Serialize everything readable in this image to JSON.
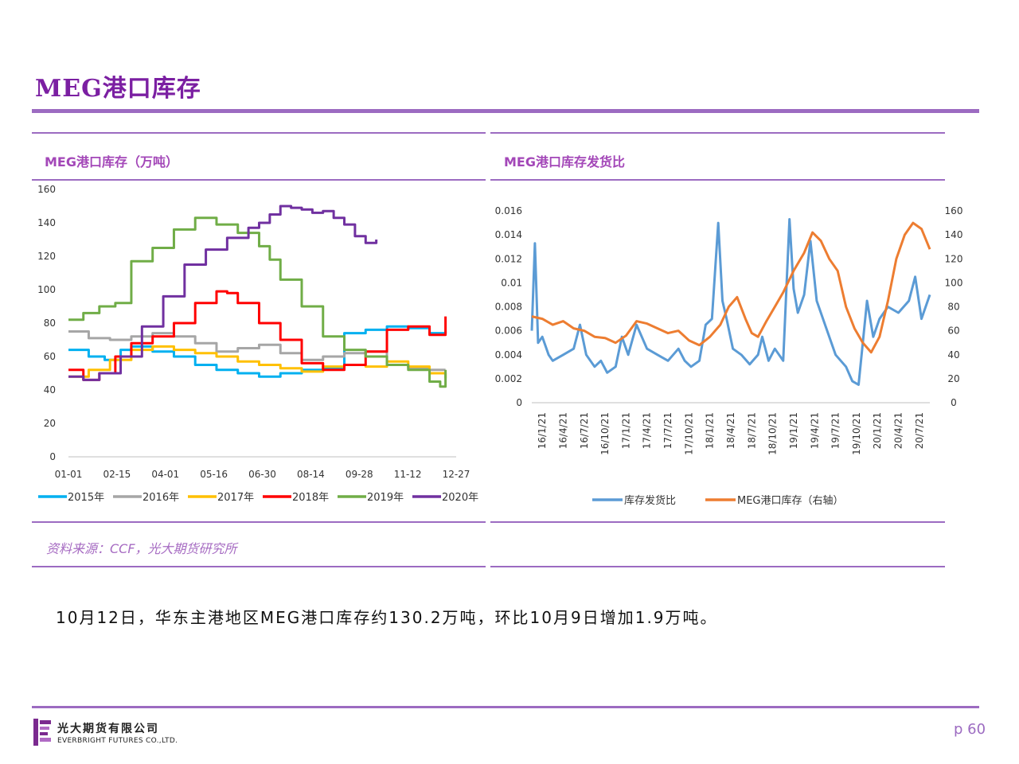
{
  "page": {
    "title": "MEG港口库存",
    "body_text": "10月12日，华东主港地区MEG港口库存约130.2万吨，环比10月9日增加1.9万吨。",
    "source": "资料来源：CCF，光大期货研究所",
    "page_number": "p 60",
    "logo_cn": "光大期货有限公司",
    "logo_en": "EVERBRIGHT FUTURES CO.,LTD.",
    "accent_color": "#7B1FA2",
    "rule_color": "#9C6BC1"
  },
  "chart_data": [
    {
      "type": "line",
      "title": "MEG港口库存（万吨）",
      "ylim": [
        0,
        160
      ],
      "yticks": [
        "0",
        "20",
        "40",
        "60",
        "80",
        "100",
        "120",
        "140",
        "160"
      ],
      "xticks": [
        "01-01",
        "02-15",
        "04-01",
        "05-16",
        "06-30",
        "08-14",
        "09-28",
        "11-12",
        "12-27"
      ],
      "x_range": [
        1,
        365
      ],
      "legend_position": "bottom",
      "series": [
        {
          "name": "2015年",
          "color": "#00B0F0",
          "x": [
            1,
            20,
            35,
            50,
            60,
            80,
            100,
            120,
            140,
            160,
            180,
            200,
            220,
            240,
            260,
            280,
            300,
            320,
            340,
            355
          ],
          "values": [
            64,
            60,
            58,
            64,
            66,
            63,
            60,
            55,
            52,
            50,
            48,
            50,
            52,
            53,
            74,
            76,
            78,
            77,
            74,
            75
          ]
        },
        {
          "name": "2016年",
          "color": "#A6A6A6",
          "x": [
            1,
            20,
            40,
            60,
            80,
            100,
            120,
            140,
            160,
            180,
            200,
            220,
            240,
            260,
            280,
            300,
            320,
            340,
            355
          ],
          "values": [
            75,
            71,
            70,
            72,
            74,
            72,
            68,
            63,
            65,
            67,
            62,
            58,
            60,
            62,
            63,
            55,
            53,
            52,
            52
          ]
        },
        {
          "name": "2017年",
          "color": "#FFC000",
          "x": [
            1,
            20,
            40,
            60,
            80,
            100,
            120,
            140,
            160,
            180,
            200,
            220,
            240,
            260,
            280,
            300,
            320,
            340,
            355
          ],
          "values": [
            48,
            52,
            58,
            64,
            66,
            64,
            62,
            60,
            57,
            55,
            53,
            51,
            54,
            55,
            54,
            57,
            54,
            50,
            47
          ]
        },
        {
          "name": "2018年",
          "color": "#FF0000",
          "x": [
            1,
            15,
            30,
            45,
            60,
            80,
            100,
            120,
            140,
            150,
            160,
            180,
            200,
            220,
            240,
            260,
            280,
            300,
            320,
            340,
            355
          ],
          "values": [
            52,
            46,
            50,
            60,
            68,
            72,
            80,
            92,
            99,
            98,
            92,
            80,
            70,
            56,
            52,
            55,
            63,
            76,
            78,
            73,
            84
          ]
        },
        {
          "name": "2019年",
          "color": "#70AD47",
          "x": [
            1,
            15,
            30,
            45,
            60,
            80,
            100,
            120,
            140,
            160,
            180,
            190,
            200,
            220,
            240,
            260,
            280,
            300,
            320,
            340,
            350,
            355
          ],
          "values": [
            82,
            86,
            90,
            92,
            117,
            125,
            136,
            143,
            139,
            134,
            126,
            118,
            106,
            90,
            72,
            64,
            60,
            55,
            52,
            45,
            42,
            52
          ]
        },
        {
          "name": "2020年",
          "color": "#7030A0",
          "x": [
            1,
            15,
            30,
            50,
            70,
            90,
            110,
            130,
            150,
            170,
            180,
            190,
            200,
            210,
            220,
            230,
            240,
            250,
            260,
            270,
            280,
            290
          ],
          "values": [
            48,
            46,
            50,
            60,
            78,
            96,
            115,
            124,
            131,
            137,
            140,
            145,
            150,
            149,
            148,
            146,
            147,
            143,
            139,
            132,
            128,
            130
          ]
        }
      ]
    },
    {
      "type": "line",
      "title": "MEG港口库存发货比",
      "ylim_left": [
        0,
        0.016
      ],
      "ylim_right": [
        0,
        160
      ],
      "yticks_left": [
        "0",
        "0.002",
        "0.004",
        "0.006",
        "0.008",
        "0.01",
        "0.012",
        "0.014",
        "0.016"
      ],
      "yticks_right": [
        "0",
        "20",
        "40",
        "60",
        "80",
        "100",
        "120",
        "140",
        "160"
      ],
      "xticks": [
        "16/1/21",
        "16/4/21",
        "16/7/21",
        "16/10/21",
        "17/1/21",
        "17/4/21",
        "17/7/21",
        "17/10/21",
        "18/1/21",
        "18/4/21",
        "18/7/21",
        "18/10/21",
        "19/1/21",
        "19/4/21",
        "19/7/21",
        "19/10/21",
        "20/1/21",
        "20/4/21",
        "20/7/21"
      ],
      "x_range": [
        0,
        19
      ],
      "legend_position": "bottom",
      "series": [
        {
          "name": "库存发货比",
          "color": "#5B9BD5",
          "axis": "left",
          "x": [
            0,
            0.15,
            0.3,
            0.5,
            0.8,
            1,
            1.5,
            2,
            2.3,
            2.6,
            3,
            3.3,
            3.6,
            4,
            4.3,
            4.6,
            5,
            5.5,
            6,
            6.5,
            7,
            7.3,
            7.6,
            8,
            8.3,
            8.6,
            8.9,
            9.1,
            9.3,
            9.6,
            10,
            10.4,
            10.8,
            11,
            11.3,
            11.6,
            12,
            12.3,
            12.5,
            12.7,
            13,
            13.3,
            13.6,
            14,
            14.5,
            15,
            15.3,
            15.6,
            16,
            16.3,
            16.6,
            17,
            17.5,
            18,
            18.3,
            18.6,
            19
          ],
          "values": [
            0.006,
            0.0133,
            0.005,
            0.0055,
            0.004,
            0.0035,
            0.004,
            0.0045,
            0.0065,
            0.004,
            0.003,
            0.0035,
            0.0025,
            0.003,
            0.0055,
            0.004,
            0.0065,
            0.0045,
            0.004,
            0.0035,
            0.0045,
            0.0035,
            0.003,
            0.0035,
            0.0065,
            0.007,
            0.015,
            0.0085,
            0.007,
            0.0045,
            0.004,
            0.0032,
            0.004,
            0.0055,
            0.0035,
            0.0045,
            0.0035,
            0.0153,
            0.0095,
            0.0075,
            0.009,
            0.0135,
            0.0085,
            0.0065,
            0.004,
            0.003,
            0.0018,
            0.0015,
            0.0085,
            0.0055,
            0.007,
            0.008,
            0.0075,
            0.0085,
            0.0105,
            0.007,
            0.009
          ]
        },
        {
          "name": "MEG港口库存（右轴）",
          "color": "#ED7D31",
          "axis": "right",
          "x": [
            0,
            0.5,
            1,
            1.5,
            2,
            2.5,
            3,
            3.5,
            4,
            4.5,
            5,
            5.5,
            6,
            6.5,
            7,
            7.5,
            8,
            8.5,
            9,
            9.4,
            9.8,
            10.2,
            10.5,
            10.8,
            11.2,
            11.6,
            12,
            12.5,
            13,
            13.4,
            13.8,
            14.2,
            14.6,
            15,
            15.4,
            15.8,
            16.2,
            16.6,
            17,
            17.4,
            17.8,
            18.2,
            18.6,
            19
          ],
          "values": [
            72,
            70,
            65,
            68,
            62,
            60,
            55,
            54,
            50,
            56,
            68,
            66,
            62,
            58,
            60,
            52,
            48,
            55,
            65,
            80,
            88,
            70,
            58,
            55,
            68,
            80,
            92,
            110,
            125,
            142,
            135,
            120,
            110,
            80,
            62,
            50,
            42,
            55,
            85,
            120,
            140,
            150,
            145,
            128
          ]
        }
      ]
    }
  ]
}
